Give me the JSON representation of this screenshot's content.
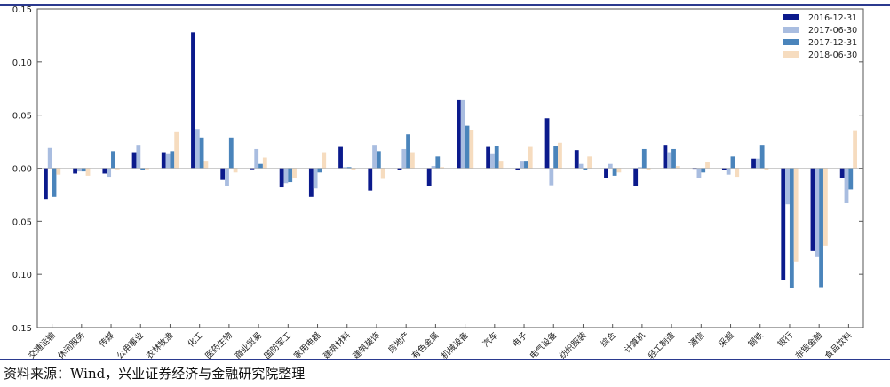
{
  "source_note": "资料来源：Wind，兴业证券经济与金融研究院整理",
  "colors": {
    "s1": "#0b1a8c",
    "s2": "#a9bde0",
    "s3": "#4a84bb",
    "s4": "#f6dcbf"
  },
  "chart_data": {
    "type": "bar",
    "title": "",
    "xlabel": "",
    "ylabel": "",
    "ylim": [
      -0.15,
      0.15
    ],
    "y_ticks": [
      "0.15",
      "0.10",
      "0.05",
      "0.00",
      "0.05",
      "0.10",
      "0.15"
    ],
    "grid": false,
    "legend_position": "top-right",
    "categories": [
      "交通运输",
      "休闲服务",
      "传媒",
      "公用事业",
      "农林牧渔",
      "化工",
      "医药生物",
      "商业贸易",
      "国防军工",
      "家用电器",
      "建筑材料",
      "建筑装饰",
      "房地产",
      "有色金属",
      "机械设备",
      "汽车",
      "电子",
      "电气设备",
      "纺织服装",
      "综合",
      "计算机",
      "轻工制造",
      "通信",
      "采掘",
      "钢铁",
      "银行",
      "非银金融",
      "食品饮料"
    ],
    "series": [
      {
        "name": "2016-12-31",
        "values": [
          -0.029,
          -0.005,
          -0.005,
          0.015,
          0.015,
          0.128,
          -0.011,
          -0.001,
          -0.018,
          -0.027,
          0.02,
          -0.021,
          -0.002,
          -0.017,
          0.064,
          0.02,
          -0.002,
          0.047,
          0.017,
          -0.009,
          -0.017,
          0.022,
          0.0,
          -0.002,
          0.009,
          -0.105,
          -0.078,
          -0.009
        ]
      },
      {
        "name": "2017-06-30",
        "values": [
          0.019,
          -0.003,
          -0.008,
          0.022,
          0.014,
          0.037,
          -0.017,
          0.018,
          -0.014,
          -0.019,
          0.001,
          0.022,
          0.018,
          0.002,
          0.064,
          0.014,
          0.007,
          -0.016,
          0.004,
          0.004,
          0.001,
          0.015,
          -0.009,
          -0.006,
          0.009,
          -0.034,
          -0.083,
          -0.033
        ]
      },
      {
        "name": "2017-12-31",
        "values": [
          -0.027,
          -0.003,
          0.016,
          -0.002,
          0.016,
          0.029,
          0.029,
          0.004,
          -0.013,
          -0.004,
          0.001,
          0.016,
          0.032,
          0.011,
          0.04,
          0.021,
          0.007,
          0.021,
          -0.002,
          -0.007,
          0.018,
          0.018,
          -0.004,
          0.011,
          0.022,
          -0.113,
          -0.112,
          -0.02
        ]
      },
      {
        "name": "2018-06-30",
        "values": [
          -0.006,
          -0.007,
          -0.001,
          -0.001,
          0.034,
          0.007,
          -0.004,
          0.01,
          -0.009,
          0.015,
          -0.002,
          -0.01,
          0.015,
          0.001,
          0.036,
          0.007,
          0.02,
          0.024,
          0.011,
          -0.004,
          -0.002,
          0.002,
          0.006,
          -0.008,
          -0.002,
          -0.088,
          -0.073,
          0.035
        ]
      }
    ]
  }
}
